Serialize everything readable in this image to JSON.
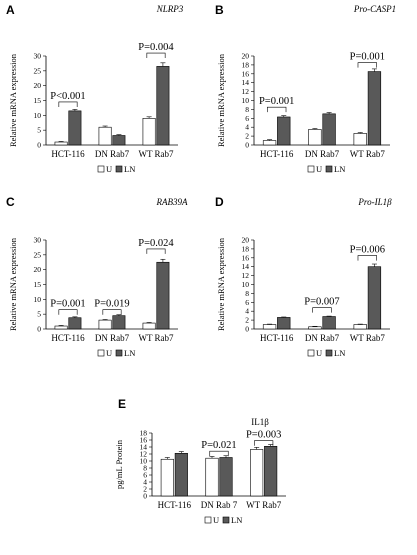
{
  "chart_data": [
    {
      "panel": "A",
      "type": "bar",
      "title": "NLRP3",
      "ylabel": "Relative mRNA expression",
      "ylim": [
        0,
        30
      ],
      "yticks": [
        0,
        5,
        10,
        15,
        20,
        25,
        30
      ],
      "categories": [
        "HCT-116",
        "DN Rab7",
        "WT Rab7"
      ],
      "series": [
        {
          "name": "U",
          "color": "#ffffff",
          "values": [
            1.0,
            6.0,
            9.0
          ],
          "errors": [
            0.2,
            0.4,
            0.5
          ]
        },
        {
          "name": "LN",
          "color": "#595959",
          "values": [
            11.5,
            3.2,
            26.5
          ],
          "errors": [
            0.5,
            0.3,
            1.2
          ]
        }
      ],
      "annotations": [
        {
          "text": "P<0.001",
          "category": 0,
          "bracket_y": 14.5
        },
        {
          "text": "P=0.004",
          "category": 2,
          "bracket_y": 31.0
        }
      ],
      "legend": "bottom"
    },
    {
      "panel": "B",
      "type": "bar",
      "title": "Pro-CASP1",
      "ylabel": "Relative mRNA expression",
      "ylim": [
        0,
        20
      ],
      "yticks": [
        0,
        2,
        4,
        6,
        8,
        10,
        12,
        14,
        16,
        18,
        20
      ],
      "categories": [
        "HCT-116",
        "DN Rab7",
        "WT Rab7"
      ],
      "series": [
        {
          "name": "U",
          "color": "#ffffff",
          "values": [
            1.0,
            3.5,
            2.6
          ],
          "errors": [
            0.2,
            0.2,
            0.2
          ]
        },
        {
          "name": "LN",
          "color": "#595959",
          "values": [
            6.3,
            7.0,
            16.5
          ],
          "errors": [
            0.3,
            0.3,
            0.6
          ]
        }
      ],
      "annotations": [
        {
          "text": "P=0.001",
          "category": 0,
          "bracket_y": 8.5
        },
        {
          "text": "P=0.001",
          "category": 2,
          "bracket_y": 18.5
        }
      ],
      "legend": "bottom"
    },
    {
      "panel": "C",
      "type": "bar",
      "title": "RAB39A",
      "ylabel": "Relative mRNA expression",
      "ylim": [
        0,
        30
      ],
      "yticks": [
        0,
        5,
        10,
        15,
        20,
        25,
        30
      ],
      "categories": [
        "HCT-116",
        "DN Rab7",
        "WT Rab7"
      ],
      "series": [
        {
          "name": "U",
          "color": "#ffffff",
          "values": [
            1.0,
            3.0,
            2.0
          ],
          "errors": [
            0.2,
            0.2,
            0.2
          ]
        },
        {
          "name": "LN",
          "color": "#595959",
          "values": [
            3.8,
            4.5,
            22.5
          ],
          "errors": [
            0.3,
            0.3,
            1.0
          ]
        }
      ],
      "annotations": [
        {
          "text": "P=0.001",
          "category": 0,
          "bracket_y": 6.5
        },
        {
          "text": "P=0.019",
          "category": 1,
          "bracket_y": 6.5
        },
        {
          "text": "P=0.024",
          "category": 2,
          "bracket_y": 27.0
        }
      ],
      "legend": "bottom"
    },
    {
      "panel": "D",
      "type": "bar",
      "title": "Pro-IL1β",
      "ylabel": "Relative mRNA expression",
      "ylim": [
        0,
        20
      ],
      "yticks": [
        0,
        2,
        4,
        6,
        8,
        10,
        12,
        14,
        16,
        18,
        20
      ],
      "categories": [
        "HCT-116",
        "DN Rab7",
        "WT Rab7"
      ],
      "series": [
        {
          "name": "U",
          "color": "#ffffff",
          "values": [
            1.0,
            0.5,
            1.0
          ],
          "errors": [
            0.1,
            0.1,
            0.1
          ]
        },
        {
          "name": "LN",
          "color": "#595959",
          "values": [
            2.6,
            2.8,
            14.0
          ],
          "errors": [
            0.1,
            0.1,
            0.6
          ]
        }
      ],
      "annotations": [
        {
          "text": "P=0.007",
          "category": 1,
          "bracket_y": 4.8
        },
        {
          "text": "P=0.006",
          "category": 2,
          "bracket_y": 16.5
        }
      ],
      "legend": "bottom"
    },
    {
      "panel": "E",
      "type": "bar",
      "title": "IL1β",
      "ylabel": "pg/mL Protein",
      "ylim": [
        0,
        18
      ],
      "yticks": [
        0,
        2,
        4,
        6,
        8,
        10,
        12,
        14,
        16,
        18
      ],
      "categories": [
        "HCT-116",
        "DN Rab 7",
        "WT Rab7"
      ],
      "series": [
        {
          "name": "U",
          "color": "#ffffff",
          "values": [
            10.5,
            10.8,
            13.3
          ],
          "errors": [
            0.5,
            0.5,
            0.6
          ]
        },
        {
          "name": "LN",
          "color": "#595959",
          "values": [
            12.2,
            11.0,
            14.2
          ],
          "errors": [
            0.5,
            0.5,
            0.5
          ]
        }
      ],
      "annotations": [
        {
          "text": "P=0.021",
          "category": 1,
          "bracket_y": 12.8
        },
        {
          "text": "P=0.003",
          "category": 2,
          "bracket_y": 15.8
        }
      ],
      "legend": "bottom"
    }
  ]
}
